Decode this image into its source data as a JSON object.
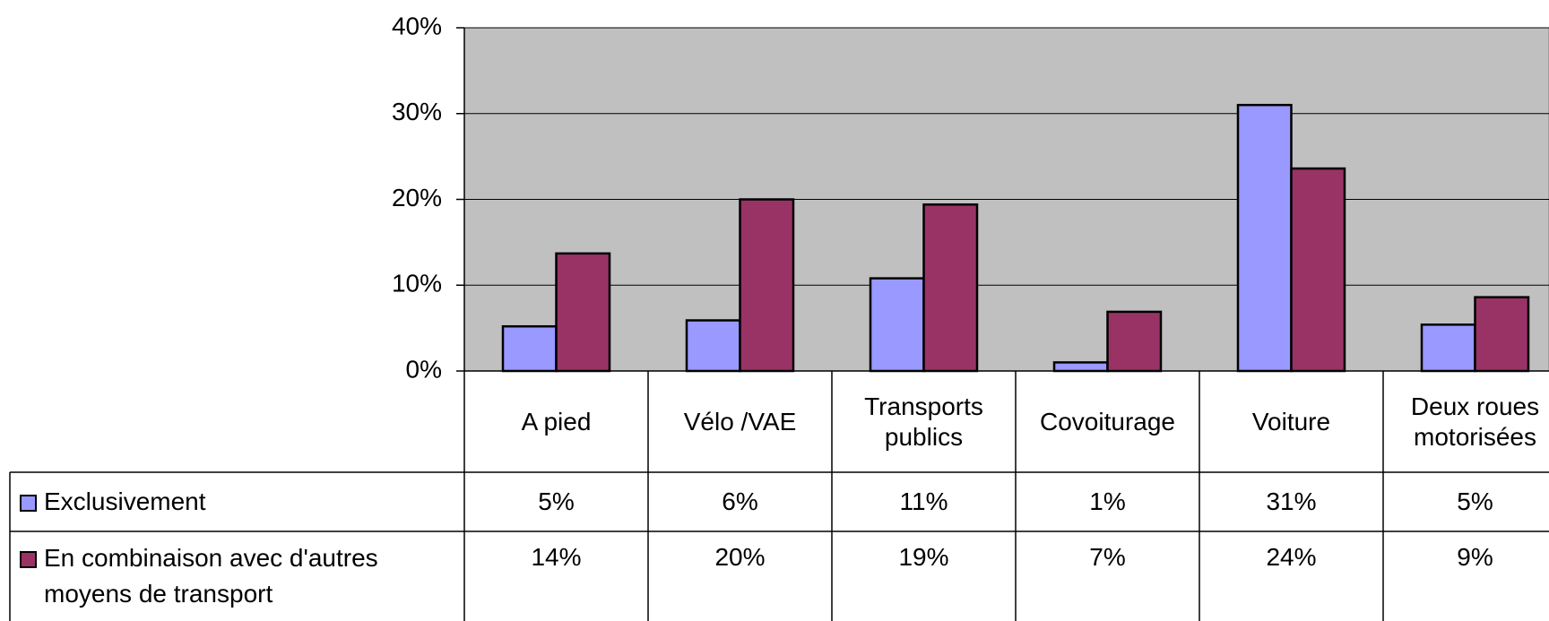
{
  "chart_data": {
    "type": "bar",
    "categories": [
      "A pied",
      "Vélo /VAE",
      "Transports publics",
      "Covoiturage",
      "Voiture",
      "Deux roues motorisées"
    ],
    "series": [
      {
        "name": "Exclusivement",
        "color": "#9999ff",
        "values": [
          5.2,
          5.9,
          10.8,
          1,
          31,
          5.4
        ],
        "value_labels": [
          "5%",
          "6%",
          "11%",
          "1%",
          "31%",
          "5%"
        ]
      },
      {
        "name": "En combinaison avec d'autres moyens de transport",
        "color": "#993366",
        "values": [
          13.7,
          20,
          19.4,
          6.9,
          23.6,
          8.6
        ],
        "value_labels": [
          "14%",
          "20%",
          "19%",
          "7%",
          "24%",
          "9%"
        ]
      }
    ],
    "ylim": [
      0,
      40
    ],
    "yticks": [
      {
        "value": 0,
        "label": "0%"
      },
      {
        "value": 10,
        "label": "10%"
      },
      {
        "value": 20,
        "label": "20%"
      },
      {
        "value": 30,
        "label": "30%"
      },
      {
        "value": 40,
        "label": "40%"
      }
    ],
    "grid": true,
    "plot_background": "#c0c0c0"
  }
}
